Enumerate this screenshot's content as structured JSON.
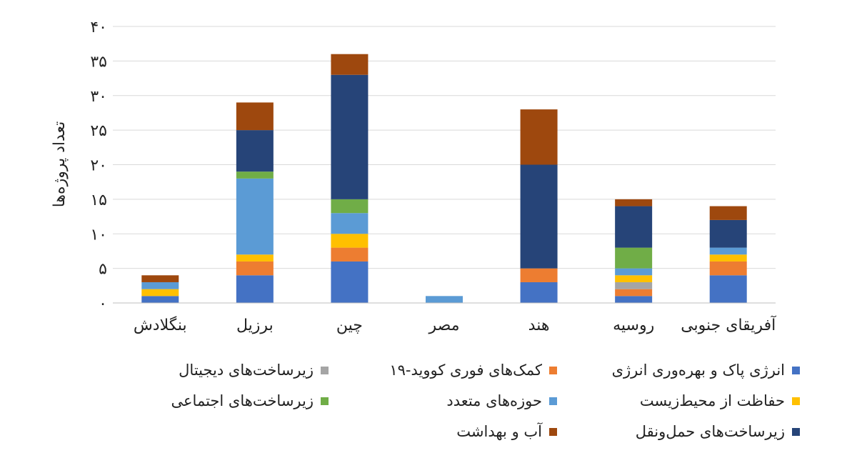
{
  "chart_data": {
    "type": "bar",
    "stacked": true,
    "ylabel": "تعداد پروژه‌ها",
    "ylim": [
      0,
      40
    ],
    "yticks": [
      "۰",
      "۵",
      "۱۰",
      "۱۵",
      "۲۰",
      "۲۵",
      "۳۰",
      "۳۵",
      "۴۰"
    ],
    "ytick_values": [
      0,
      5,
      10,
      15,
      20,
      25,
      30,
      35,
      40
    ],
    "grid": true,
    "legend_position": "bottom",
    "categories": [
      "بنگلادش",
      "برزیل",
      "چین",
      "مصر",
      "هند",
      "روسیه",
      "آفریقای جنوبی"
    ],
    "series": [
      {
        "name": "انرژی پاک و بهره‌وری انرژی",
        "color": "#4472C4",
        "values": [
          1,
          4,
          6,
          0,
          3,
          1,
          4
        ]
      },
      {
        "name": "کمک‌های فوری کووید-۱۹",
        "color": "#ED7D31",
        "values": [
          0,
          2,
          2,
          0,
          2,
          1,
          2
        ]
      },
      {
        "name": "زیرساخت‌های دیجیتال",
        "color": "#A5A5A5",
        "values": [
          0,
          0,
          0,
          0,
          0,
          1,
          0
        ]
      },
      {
        "name": "حفاظت از محیط‌زیست",
        "color": "#FFC000",
        "values": [
          1,
          1,
          2,
          0,
          0,
          1,
          1
        ]
      },
      {
        "name": "حوزه‌های متعدد",
        "color": "#5B9BD5",
        "values": [
          1,
          11,
          3,
          1,
          0,
          1,
          1
        ]
      },
      {
        "name": "زیرساخت‌های اجتماعی",
        "color": "#70AD47",
        "values": [
          0,
          1,
          2,
          0,
          0,
          3,
          0
        ]
      },
      {
        "name": "زیرساخت‌های حمل‌ونقل",
        "color": "#264478",
        "values": [
          0,
          6,
          18,
          0,
          15,
          6,
          4
        ]
      },
      {
        "name": "آب و بهداشت",
        "color": "#9E480E",
        "values": [
          1,
          4,
          3,
          0,
          8,
          1,
          2
        ]
      }
    ]
  }
}
